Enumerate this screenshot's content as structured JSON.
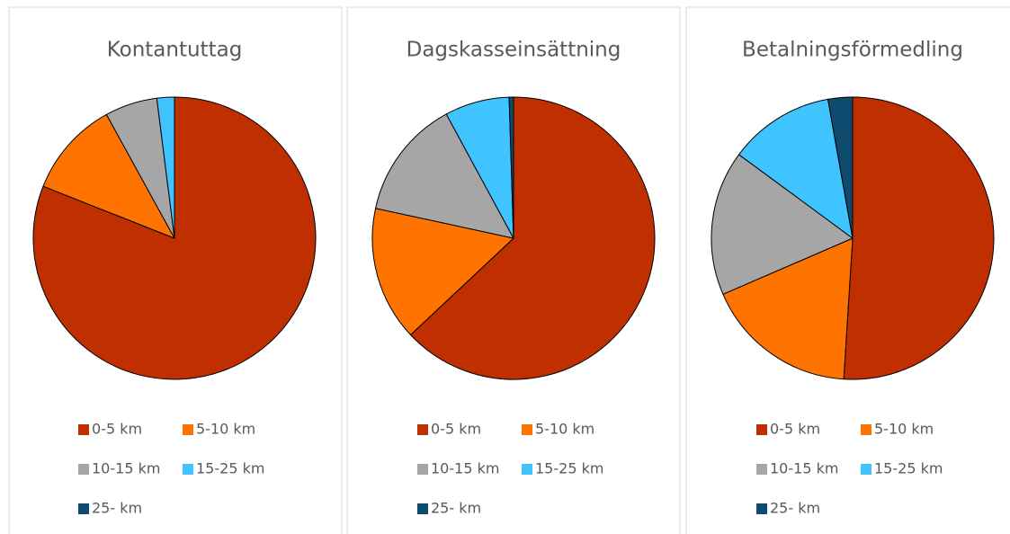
{
  "chart_data": [
    {
      "type": "pie",
      "title": "Kontantuttag",
      "categories": [
        "0-5 km",
        "5-10 km",
        "10-15 km",
        "15-25 km",
        "25- km"
      ],
      "values": [
        81,
        11,
        6,
        2,
        0
      ],
      "colors": [
        "#bf2f00",
        "#ff7300",
        "#a6a6a6",
        "#40c4ff",
        "#0f4b6e"
      ]
    },
    {
      "type": "pie",
      "title": "Dagskasseinsättning",
      "categories": [
        "0-5 km",
        "5-10 km",
        "10-15 km",
        "15-25 km",
        "25- km"
      ],
      "values": [
        63,
        15.4,
        13.7,
        7.4,
        0.5
      ],
      "colors": [
        "#bf2f00",
        "#ff7300",
        "#a6a6a6",
        "#40c4ff",
        "#0f4b6e"
      ]
    },
    {
      "type": "pie",
      "title": "Betalningsförmedling",
      "categories": [
        "0-5 km",
        "5-10 km",
        "10-15 km",
        "15-25 km",
        "25- km"
      ],
      "values": [
        51,
        17.5,
        16.6,
        12.1,
        2.8
      ],
      "colors": [
        "#bf2f00",
        "#ff7300",
        "#a6a6a6",
        "#40c4ff",
        "#0f4b6e"
      ]
    }
  ]
}
